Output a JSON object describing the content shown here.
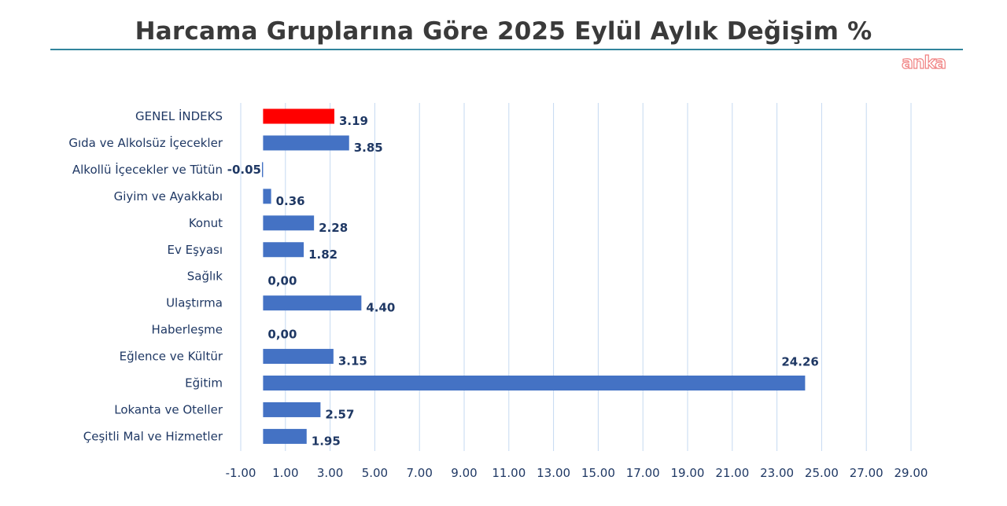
{
  "header": {
    "title": "Harcama Gruplarına Göre 2025 Eylül Aylık Değişim %",
    "brand": "anka"
  },
  "colors": {
    "bar": "#4472c4",
    "highlight_bar": "#ff0000",
    "highlight_label": "#ff0000",
    "label": "#1f3864",
    "grid": "#c5d9f1",
    "rule": "#31859c"
  },
  "chart_data": {
    "type": "bar",
    "orientation": "horizontal",
    "title": "Harcama Gruplarına Göre 2025 Eylül Aylık Değişim %",
    "categories": [
      "GENEL İNDEKS",
      "Gıda ve Alkolsüz İçecekler",
      "Alkollü İçecekler ve Tütün",
      "Giyim ve Ayakkabı",
      "Konut",
      "Ev Eşyası",
      "Sağlık",
      "Ulaştırma",
      "Haberleşme",
      "Eğlence ve Kültür",
      "Eğitim",
      "Lokanta ve Oteller",
      "Çeşitli Mal ve Hizmetler"
    ],
    "values": [
      3.19,
      3.85,
      -0.05,
      0.36,
      2.28,
      1.82,
      0.0,
      4.4,
      0.0,
      3.15,
      24.26,
      2.57,
      1.95
    ],
    "data_labels": [
      "3.19",
      "3.85",
      "-0.05",
      "0.36",
      "2.28",
      "1.82",
      "0,00",
      "4.40",
      "0,00",
      "3.15",
      "24.26",
      "2.57",
      "1.95"
    ],
    "highlight_index": 0,
    "xlim": [
      -1,
      29
    ],
    "xticks": [
      -1,
      1,
      3,
      5,
      7,
      9,
      11,
      13,
      15,
      17,
      19,
      21,
      23,
      25,
      27,
      29
    ],
    "xtick_labels": [
      "-1.00",
      "1.00",
      "3.00",
      "5.00",
      "7.00",
      "9.00",
      "11.00",
      "13.00",
      "15.00",
      "17.00",
      "19.00",
      "21.00",
      "23.00",
      "25.00",
      "27.00",
      "29.00"
    ],
    "grid": true,
    "legend": "none",
    "xlabel": "",
    "ylabel": ""
  }
}
